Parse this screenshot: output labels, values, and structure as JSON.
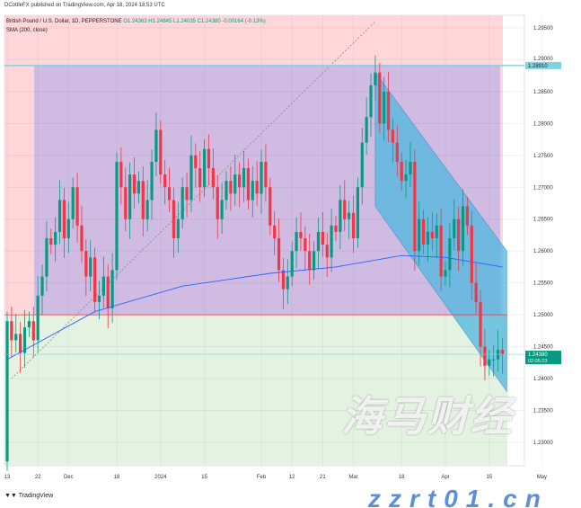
{
  "header": {
    "published": "DCottleFX published on TradingView.com, Apr 18, 2024 18:53 UTC",
    "symbol": "British Pound / U.S. Dollar, 1D, PEPPERSTONE",
    "ohlc": "O1.24363 H1.24845 L1.24035 C1.24380 -0.00164 (-0.13%)",
    "indicator": "SMA (200, close)"
  },
  "footer": {
    "brand": "TradingView"
  },
  "watermark": {
    "cn": "海马财经",
    "url": "zzrt01.cn"
  },
  "colors": {
    "up": "#089981",
    "down": "#f23645",
    "sma": "#2962ff",
    "stop_zone": "#ffd6d9",
    "target_zone": "#e3f2e1",
    "channel": "#4fb7e0",
    "range": "#c8b7e3"
  },
  "price_label": {
    "value": "1.24380",
    "countdown": "02:05:23",
    "color": "#089981"
  },
  "level_label": {
    "value": "1.28910",
    "color": "#7fd3e0"
  },
  "chart_data": {
    "type": "candlestick",
    "symbol": "GBPUSD",
    "start_date": "2023-11-13",
    "first_open": 1.227,
    "close": [
      1.249,
      1.246,
      1.247,
      1.244,
      1.248,
      1.249,
      1.246,
      1.253,
      1.256,
      1.262,
      1.261,
      1.263,
      1.268,
      1.262,
      1.265,
      1.27,
      1.264,
      1.26,
      1.256,
      1.259,
      1.252,
      1.253,
      1.256,
      1.251,
      1.257,
      1.274,
      1.27,
      1.265,
      1.272,
      1.269,
      1.271,
      1.265,
      1.268,
      1.274,
      1.279,
      1.272,
      1.27,
      1.268,
      1.262,
      1.265,
      1.27,
      1.268,
      1.275,
      1.273,
      1.27,
      1.276,
      1.273,
      1.27,
      1.265,
      1.268,
      1.271,
      1.269,
      1.272,
      1.27,
      1.273,
      1.268,
      1.271,
      1.269,
      1.274,
      1.27,
      1.264,
      1.262,
      1.257,
      1.254,
      1.256,
      1.26,
      1.263,
      1.262,
      1.26,
      1.257,
      1.26,
      1.263,
      1.261,
      1.259,
      1.264,
      1.263,
      1.268,
      1.265,
      1.266,
      1.262,
      1.27,
      1.277,
      1.281,
      1.286,
      1.288,
      1.28,
      1.285,
      1.279,
      1.277,
      1.274,
      1.271,
      1.272,
      1.274,
      1.26,
      1.265,
      1.261,
      1.263,
      1.262,
      1.264,
      1.256,
      1.257,
      1.262,
      1.265,
      1.26,
      1.267,
      1.264,
      1.255,
      1.252,
      1.245,
      1.242,
      1.243,
      1.243,
      1.2445,
      1.2438
    ],
    "sma200": [
      [
        0,
        1.243
      ],
      [
        20,
        1.2505
      ],
      [
        40,
        1.2545
      ],
      [
        60,
        1.2565
      ],
      [
        75,
        1.2575
      ],
      [
        90,
        1.2593
      ],
      [
        100,
        1.259
      ],
      [
        113,
        1.2575
      ]
    ],
    "ylim": [
      1.225,
      1.297
    ],
    "yticks": [
      "1.29500",
      "1.29000",
      "1.28500",
      "1.28000",
      "1.27500",
      "1.27000",
      "1.26500",
      "1.26000",
      "1.25500",
      "1.25000",
      "1.24500",
      "1.24000",
      "1.23500",
      "1.23000"
    ],
    "xticks": [
      {
        "label": "13",
        "date": "2023-11-13"
      },
      {
        "label": "22",
        "date": "2023-11-22"
      },
      {
        "label": "Dec",
        "date": "2023-12-01"
      },
      {
        "label": "18",
        "date": "2023-12-18"
      },
      {
        "label": "2024",
        "date": "2024-01-01"
      },
      {
        "label": "15",
        "date": "2024-01-15"
      },
      {
        "label": "Feb",
        "date": "2024-02-01"
      },
      {
        "label": "12",
        "date": "2024-02-12"
      },
      {
        "label": "21",
        "date": "2024-02-21"
      },
      {
        "label": "Mar",
        "date": "2024-03-01"
      },
      {
        "label": "18",
        "date": "2024-03-18"
      },
      {
        "label": "Apr",
        "date": "2024-04-01"
      },
      {
        "label": "15",
        "date": "2024-04-15"
      },
      {
        "label": "May",
        "date": "2024-05-01"
      }
    ],
    "position": {
      "entry": 1.2891,
      "stop_top": 1.297,
      "target": 1.25,
      "bottom": 1.225
    },
    "channel": {
      "upper": [
        [
          84,
          1.288
        ],
        [
          114,
          1.26
        ]
      ],
      "lower": [
        [
          84,
          1.267
        ],
        [
          114,
          1.238
        ]
      ]
    },
    "trendline_dashed": [
      [
        1,
        1.24
      ],
      [
        84,
        1.296
      ]
    ],
    "grid": true
  }
}
